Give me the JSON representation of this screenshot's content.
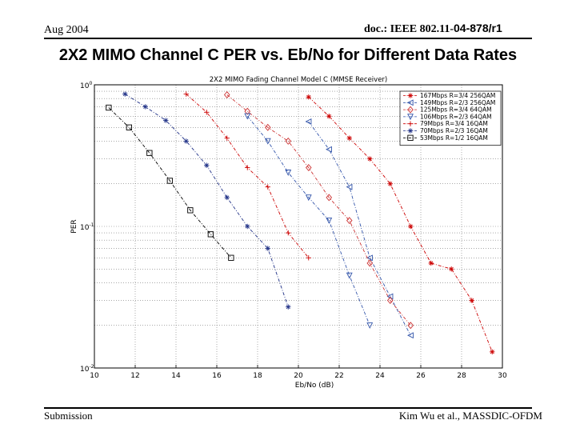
{
  "header": {
    "date": "Aug 2004",
    "doc_prefix": "doc.: IEEE 802.11-",
    "doc_number": "04-878/r1"
  },
  "slide_title": "2X2 MIMO Channel C PER vs. Eb/No for Different Data Rates",
  "footer": {
    "left": "Submission",
    "right": "Kim Wu et al., MASSDIC-OFDM"
  },
  "chart_data": {
    "type": "line",
    "title": "2X2 MIMO Fading Channel Model C (MMSE Receiver)",
    "xlabel": "Eb/No (dB)",
    "ylabel": "PER",
    "xlim": [
      10,
      30
    ],
    "ylim": [
      0.01,
      1
    ],
    "yscale": "log",
    "x_ticks": [
      10,
      12,
      14,
      16,
      18,
      20,
      22,
      24,
      26,
      28,
      30
    ],
    "y_ticks": [
      {
        "value": 1,
        "base": "10",
        "exp": "0"
      },
      {
        "value": 0.1,
        "base": "10",
        "exp": "-1"
      },
      {
        "value": 0.01,
        "base": "10",
        "exp": "-2"
      }
    ],
    "grid": true,
    "legend_position": "top-right",
    "series": [
      {
        "name": "167Mbps R=3/4 256QAM",
        "color": "#cc0000",
        "marker": "star",
        "linestyle": "dashdot",
        "x": [
          20.5,
          21.5,
          22.5,
          23.5,
          24.5,
          25.5,
          26.5,
          27.5,
          28.5,
          29.5
        ],
        "y": [
          0.82,
          0.6,
          0.42,
          0.3,
          0.2,
          0.1,
          0.055,
          0.05,
          0.03,
          0.013
        ]
      },
      {
        "name": "149Mbps R=2/3 256QAM",
        "color": "#3355aa",
        "marker": "triangle-left",
        "linestyle": "dashdot",
        "x": [
          20.5,
          21.5,
          22.5,
          23.5,
          24.5,
          25.5
        ],
        "y": [
          0.55,
          0.35,
          0.19,
          0.06,
          0.032,
          0.017
        ]
      },
      {
        "name": "125Mbps R=3/4 64QAM",
        "color": "#cc3333",
        "marker": "diamond",
        "linestyle": "dashdot",
        "x": [
          16.5,
          17.5,
          18.5,
          19.5,
          20.5,
          21.5,
          22.5,
          23.5,
          24.5,
          25.5
        ],
        "y": [
          0.85,
          0.65,
          0.5,
          0.4,
          0.26,
          0.16,
          0.11,
          0.055,
          0.03,
          0.02
        ]
      },
      {
        "name": "106Mbps R=2/3 64QAM",
        "color": "#3355aa",
        "marker": "triangle-down",
        "linestyle": "dashdot",
        "x": [
          17.5,
          18.5,
          19.5,
          20.5,
          21.5,
          22.5,
          23.5
        ],
        "y": [
          0.6,
          0.4,
          0.24,
          0.16,
          0.11,
          0.045,
          0.02
        ]
      },
      {
        "name": "79Mbps R=3/4 16QAM",
        "color": "#cc0000",
        "marker": "plus",
        "linestyle": "dashdot",
        "x": [
          14.5,
          15.5,
          16.5,
          17.5,
          18.5,
          19.5,
          20.5
        ],
        "y": [
          0.86,
          0.64,
          0.42,
          0.26,
          0.19,
          0.09,
          0.06
        ]
      },
      {
        "name": "70Mbps R=2/3 16QAM",
        "color": "#223388",
        "marker": "star",
        "linestyle": "dashdot",
        "x": [
          11.5,
          12.5,
          13.5,
          14.5,
          15.5,
          16.5,
          17.5,
          18.5,
          19.5
        ],
        "y": [
          0.86,
          0.7,
          0.56,
          0.4,
          0.27,
          0.16,
          0.1,
          0.07,
          0.027
        ]
      },
      {
        "name": "53Mbps R=1/2 16QAM",
        "color": "#000000",
        "marker": "square",
        "linestyle": "dashdot",
        "x": [
          10.7,
          11.7,
          12.7,
          13.7,
          14.7,
          15.7,
          16.7
        ],
        "y": [
          0.69,
          0.5,
          0.33,
          0.21,
          0.13,
          0.088,
          0.06
        ]
      }
    ]
  }
}
